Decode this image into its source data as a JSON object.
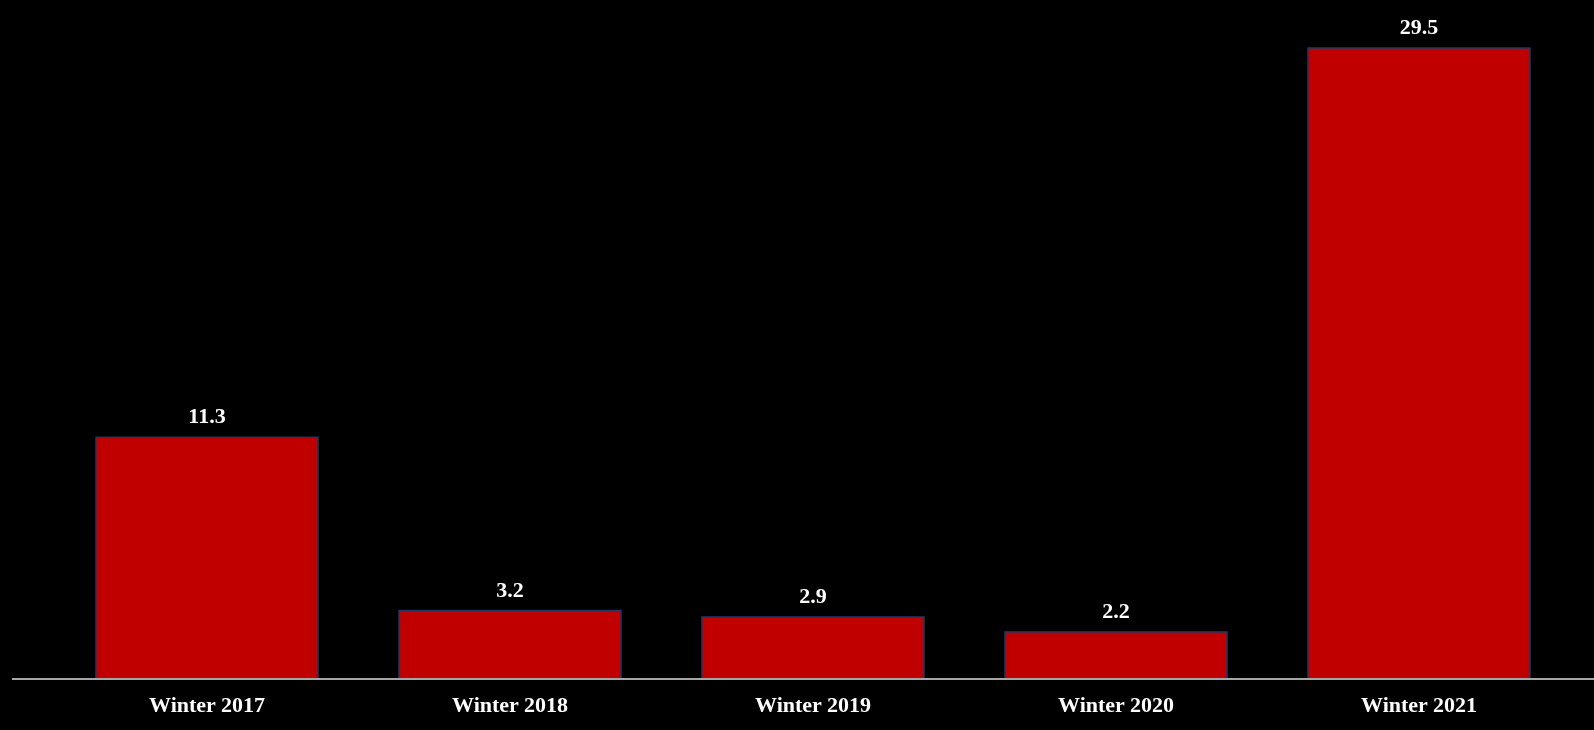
{
  "chart_data": {
    "type": "bar",
    "categories": [
      "Winter 2017",
      "Winter 2018",
      "Winter 2019",
      "Winter 2020",
      "Winter 2021"
    ],
    "values": [
      11.3,
      3.2,
      2.9,
      2.2,
      29.5
    ],
    "color": "#c00000",
    "data_labels": true
  }
}
